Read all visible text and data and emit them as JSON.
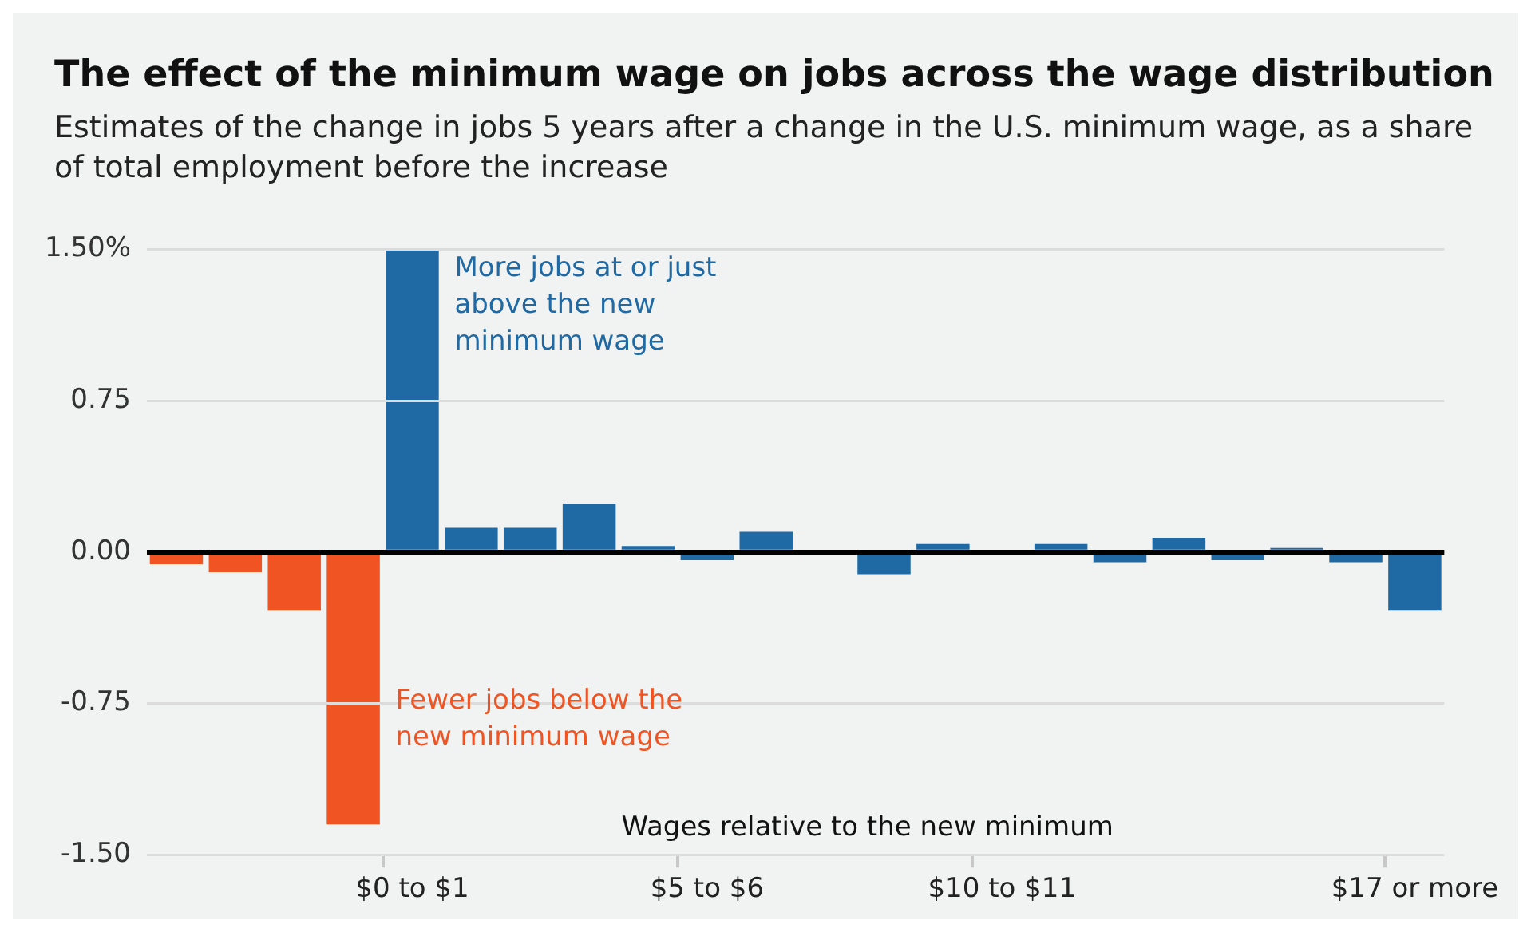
{
  "chart_data": {
    "type": "bar",
    "title": "The effect of the minimum wage on jobs across the wage distribution",
    "subtitle": "Estimates of the change in jobs 5 years after a change in the U.S. minimum wage, as a share of total employment before the increase",
    "xlabel": "Wages relative to the new minimum",
    "categories": [
      null,
      null,
      null,
      null,
      "$0 to $1",
      null,
      null,
      null,
      null,
      "$5 to $6",
      null,
      null,
      null,
      null,
      "$10 to $11",
      null,
      null,
      null,
      null,
      null,
      null,
      "$17 or more"
    ],
    "values": [
      -0.06,
      -0.1,
      -0.29,
      -1.35,
      1.5,
      0.12,
      0.12,
      0.24,
      0.03,
      -0.04,
      0.1,
      0,
      -0.11,
      0.04,
      0,
      0.04,
      -0.05,
      0.07,
      -0.04,
      0.02,
      -0.05,
      -0.29
    ],
    "colors": [
      "#f05423",
      "#f05423",
      "#f05423",
      "#f05423",
      "#1f6aa5",
      "#1f6aa5",
      "#1f6aa5",
      "#1f6aa5",
      "#1f6aa5",
      "#1f6aa5",
      "#1f6aa5",
      "#1f6aa5",
      "#1f6aa5",
      "#1f6aa5",
      "#1f6aa5",
      "#1f6aa5",
      "#1f6aa5",
      "#1f6aa5",
      "#1f6aa5",
      "#1f6aa5",
      "#1f6aa5",
      "#1f6aa5"
    ],
    "ylim": [
      -1.5,
      1.5
    ],
    "yticks": [
      {
        "value": -1.5,
        "label": "-1.50"
      },
      {
        "value": -0.75,
        "label": "-0.75"
      },
      {
        "value": 0,
        "label": "0.00"
      },
      {
        "value": 0.75,
        "label": "0.75"
      },
      {
        "value": 1.5,
        "label": "1.50%"
      }
    ],
    "grid": "y",
    "annotations": [
      {
        "text": "More jobs at or just above the new minimum wage",
        "x": "$0 to $1",
        "y": 1.5
      },
      "Fewer jobs below the new minimum wage"
    ]
  }
}
